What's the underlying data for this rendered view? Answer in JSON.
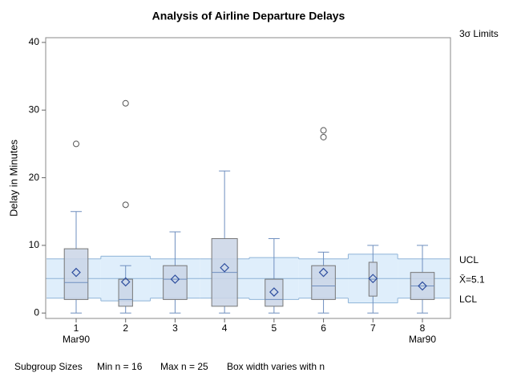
{
  "chart_data": {
    "type": "box",
    "title": "Analysis of Airline Departure Delays",
    "y_label": "Delay in Minutes",
    "limits_label": "3σ Limits",
    "categories": [
      "1",
      "2",
      "3",
      "4",
      "5",
      "6",
      "7",
      "8"
    ],
    "category_sublabels": [
      "Mar90",
      null,
      null,
      null,
      null,
      null,
      null,
      "Mar90"
    ],
    "n": [
      24,
      19,
      24,
      25,
      21,
      24,
      16,
      24
    ],
    "whisker_low": [
      0,
      0,
      0,
      0,
      0,
      0,
      0,
      0
    ],
    "q1": [
      2,
      1,
      2,
      1,
      1,
      2,
      2.5,
      2
    ],
    "median": [
      4.5,
      2,
      5,
      6,
      2,
      4,
      5,
      4
    ],
    "q3": [
      9.5,
      5,
      7,
      11,
      5,
      7,
      7.5,
      6
    ],
    "whisker_high": [
      15,
      7,
      12,
      21,
      11,
      9,
      10,
      10
    ],
    "mean": [
      6,
      4.6,
      5,
      6.7,
      3.1,
      6,
      5.1,
      4
    ],
    "outliers": [
      [
        25
      ],
      [
        16,
        31
      ],
      [],
      [],
      [],
      [
        26,
        27
      ],
      [],
      []
    ],
    "ucl": [
      8,
      8.4,
      8,
      8,
      8.2,
      8,
      8.7,
      8
    ],
    "lcl": [
      2.2,
      1.8,
      2.2,
      2.2,
      2,
      2.2,
      1.5,
      2.2
    ],
    "center": 5.1,
    "ucl_label": "UCL",
    "center_label": "X̄=5.1",
    "lcl_label": "LCL",
    "ylim": [
      -0.8,
      40.7
    ],
    "yticks": [
      0,
      10,
      20,
      30,
      40
    ],
    "box_color": "#cad5e6",
    "mean_color": "#2f4f9f",
    "band_color": "#dfeefb",
    "limit_color": "#8fb4d8"
  },
  "footer": {
    "label": "Subgroup Sizes",
    "min": "Min n = 16",
    "max": "Max n = 25",
    "note": "Box width varies with n"
  }
}
